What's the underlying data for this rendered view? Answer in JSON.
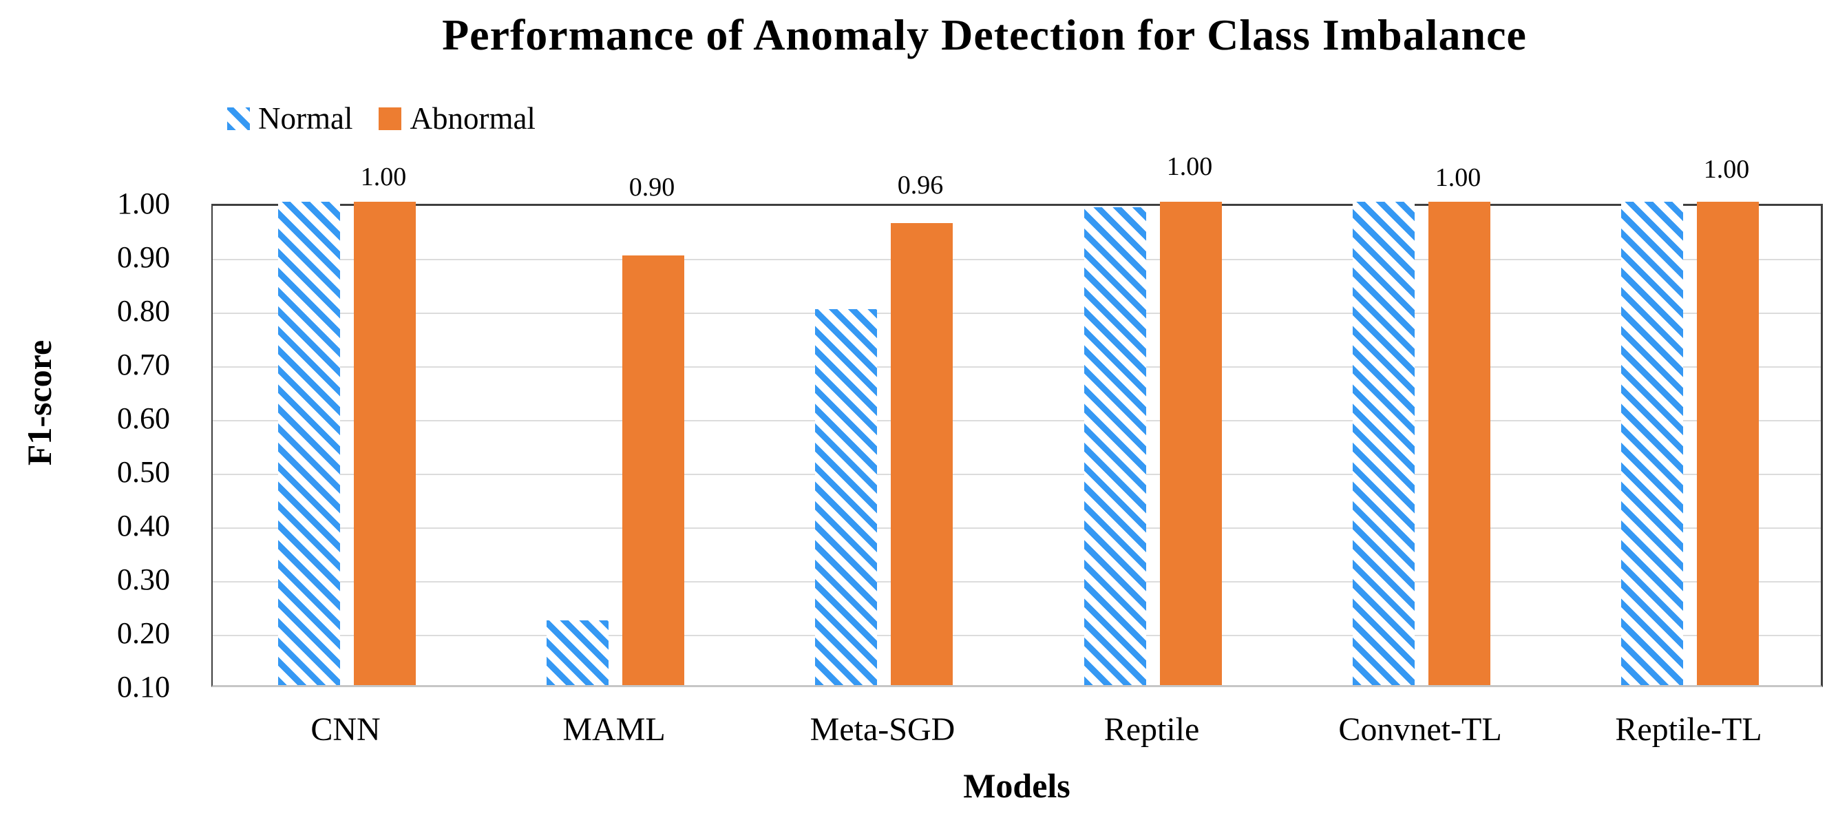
{
  "title": "Performance of Anomaly Detection for Class Imbalance",
  "legend": {
    "items": [
      {
        "label": "Normal",
        "swatch": "hatched-blue"
      },
      {
        "label": "Abnormal",
        "swatch": "solid-orange"
      }
    ]
  },
  "colors": {
    "normal_stripe": "#3598F3",
    "abnormal": "#ED7D31",
    "gridline": "#DCDCDC",
    "plot_border": "#3F3F3F",
    "text": "#000000"
  },
  "chart_data": {
    "type": "bar",
    "title": "Performance of Anomaly Detection for Class Imbalance",
    "xlabel": "Models",
    "ylabel": "F1-score",
    "ylim": [
      0.1,
      1.0
    ],
    "yticks": [
      "1.00",
      "0.90",
      "0.80",
      "0.70",
      "0.60",
      "0.50",
      "0.40",
      "0.30",
      "0.20",
      "0.10"
    ],
    "grid": true,
    "legend_position": "top-left",
    "categories": [
      "CNN",
      "MAML",
      "Meta-SGD",
      "Reptile",
      "Convnet-TL",
      "Reptile-TL"
    ],
    "series": [
      {
        "name": "Normal",
        "style": "hatched",
        "values": [
          1.0,
          0.22,
          0.8,
          0.99,
          1.0,
          1.0
        ]
      },
      {
        "name": "Abnormal",
        "style": "solid",
        "values": [
          1.0,
          0.9,
          0.96,
          1.0,
          1.0,
          1.0
        ],
        "data_labels": [
          "1.00",
          "0.90",
          "0.96",
          "1.00",
          "1.00",
          "1.00"
        ]
      }
    ]
  }
}
